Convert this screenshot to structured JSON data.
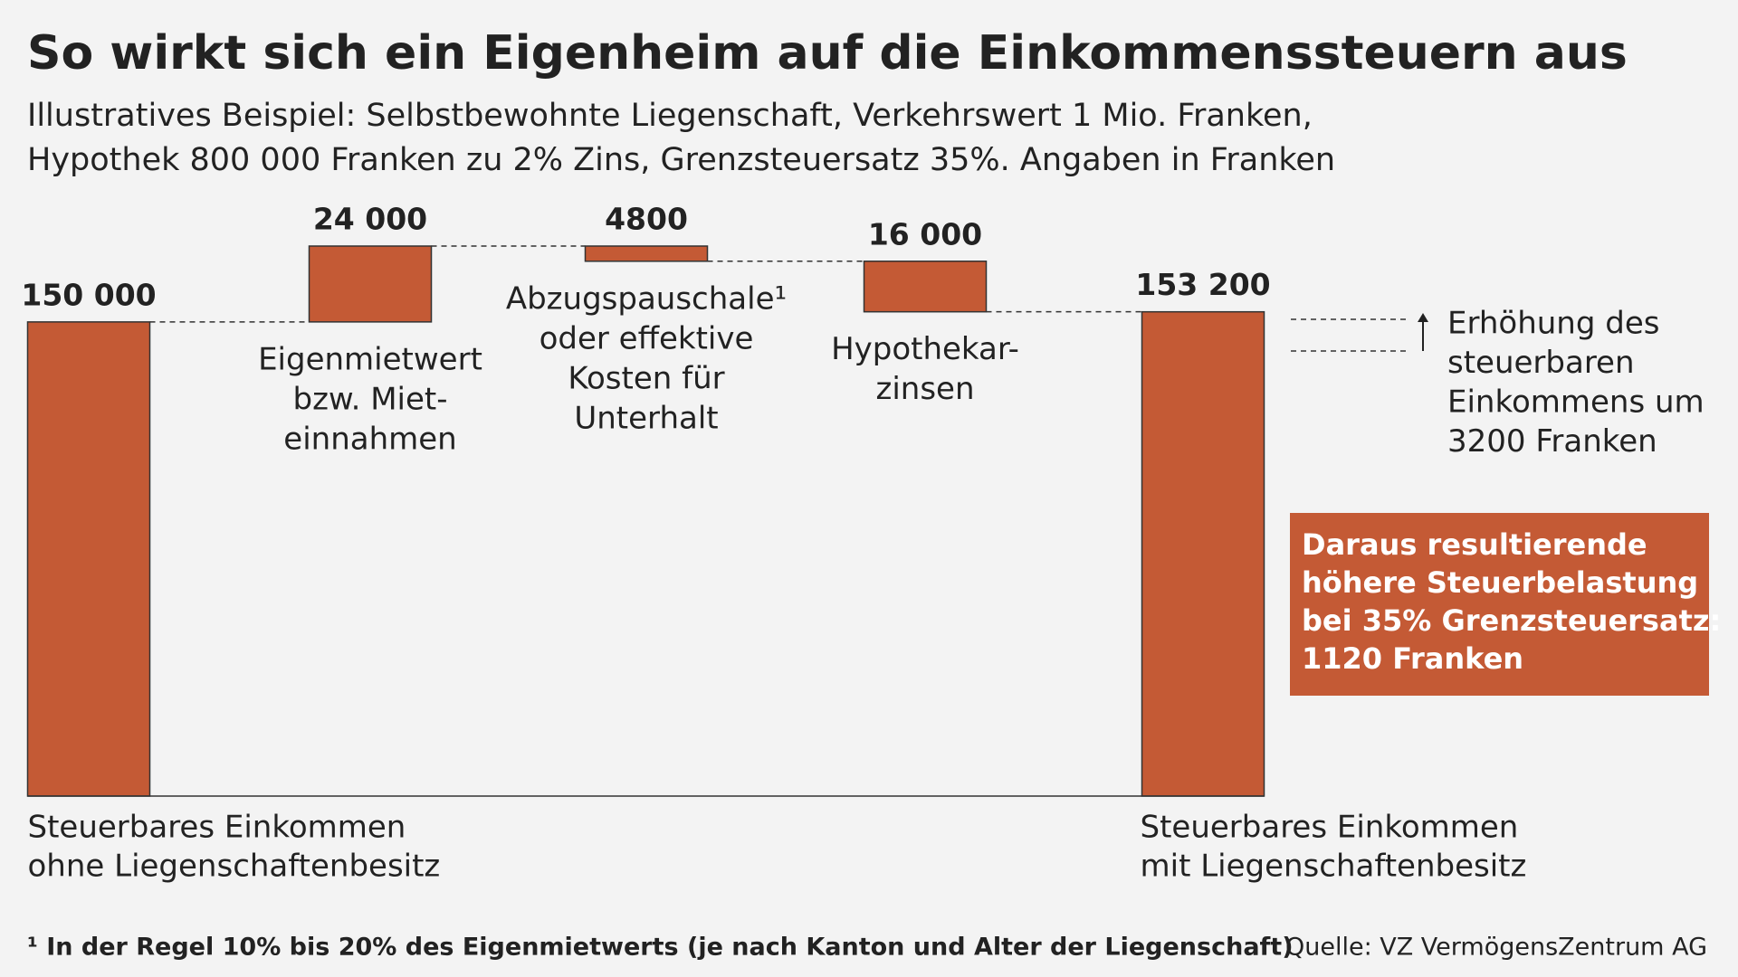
{
  "chart_data": {
    "type": "waterfall",
    "title": "So wirkt sich ein Eigenheim auf die Einkommenssteuern aus",
    "subtitle": [
      "Illustratives Beispiel: Selbstbewohnte Liegenschaft, Verkehrswert 1 Mio. Franken,",
      "Hypothek 800 000 Franken zu 2% Zins, Grenzsteuersatz 35%. Angaben in Franken"
    ],
    "categories": [
      [
        "Steuerbares Einkommen",
        "ohne Liegenschaftenbesitz"
      ],
      [
        "Eigenmietwert",
        "bzw. Miet-",
        "einnahmen"
      ],
      [
        "Abzugspauschale¹",
        "oder effektive",
        "Kosten für",
        "Unterhalt"
      ],
      [
        "Hypothekar-",
        "zinsen"
      ],
      [
        "Steuerbares Einkommen",
        "mit Liegenschaftenbesitz"
      ]
    ],
    "measure": [
      "absolute",
      "relative",
      "relative",
      "relative",
      "total"
    ],
    "values": [
      150000,
      24000,
      -4800,
      -16000,
      153200
    ],
    "value_labels": [
      "150 000",
      "24 000",
      "4800",
      "16 000",
      "153 200"
    ],
    "color": "#c45a35",
    "annotation": [
      "Erhöhung des",
      "steuerbaren",
      "Einkommens um",
      "3200 Franken"
    ],
    "callout": [
      "Daraus resultierende",
      "höhere Steuerbelastung",
      "bei 35% Grenzsteuersatz:",
      "1120 Franken"
    ],
    "footnote": "¹ In der Regel 10% bis 20% des Eigenmietwerts (je nach Kanton und Alter der Liegenschaft)",
    "source": "Quelle: VZ VermögensZentrum AG"
  }
}
